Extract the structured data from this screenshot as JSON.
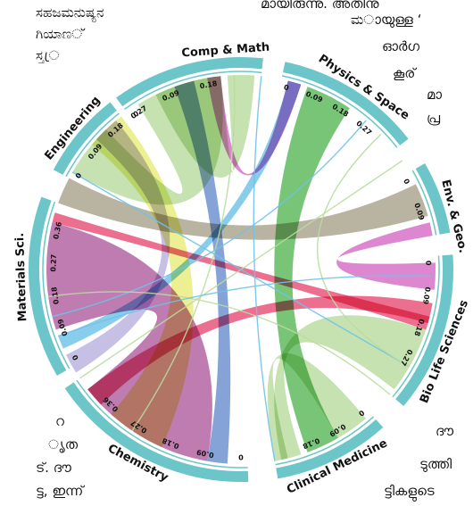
{
  "background_text": [
    "ಸಹಜಮನುಷ್ಯನ",
    "ಗಿಯಾಣ്",
    "ಸ್ತ്ര",
    "ಮായുള്ള ‘",
    "ഓർഗ",
    "കൂര്",
    "മാ",
    "പ്ര",
    "ദൗ",
    "ടുത്തി",
    "ട്ടികളുടെ",
    "ൃത",
    "ട്. ദൗ",
    "ട്ട, ഇന്ന്",
    "മായിരുന്നു. അതിനു",
    "റ"
  ],
  "chart_data": {
    "type": "chord",
    "segments": [
      {
        "name": "Comp & Math",
        "color": "#6cc5c9",
        "ticks": [
          "0",
          "0.09",
          "0.18"
        ]
      },
      {
        "name": "Physics & Space",
        "color": "#6cc5c9",
        "ticks": [
          "0",
          "0.09",
          "0.18",
          "0.27"
        ]
      },
      {
        "name": "Env. & Geo.",
        "color": "#6cc5c9",
        "ticks": [
          "0",
          "0.09"
        ]
      },
      {
        "name": "Bio Life Sciences",
        "color": "#6cc5c9",
        "ticks": [
          "0",
          "0.09",
          "0.18",
          "0.27"
        ]
      },
      {
        "name": "Clinical Medicine",
        "color": "#6cc5c9",
        "ticks": [
          "0",
          "0.09",
          "0.18"
        ]
      },
      {
        "name": "Chemistry",
        "color": "#6cc5c9",
        "ticks": [
          "0",
          "0.09",
          "0.18",
          "0.27",
          "0.36"
        ]
      },
      {
        "name": "Materials Sci.",
        "color": "#6cc5c9",
        "ticks": [
          "0",
          "0.09",
          "0.18",
          "0.27",
          "0.36"
        ]
      },
      {
        "name": "Engineering",
        "color": "#6cc5c9",
        "ticks": [
          "0",
          "0.09",
          "0.18",
          "0.27"
        ]
      }
    ],
    "ribbon_colors": {
      "green_light": "#b9dca0",
      "green": "#5bb85a",
      "yellow": "#e8ec7a",
      "olive": "#a9a38c",
      "mauve": "#b15fa0",
      "pink": "#e94f77",
      "blue": "#6b8fd0",
      "lavender": "#b9b2df",
      "sky": "#6fc2e8",
      "magenta": "#d56dc7"
    }
  }
}
